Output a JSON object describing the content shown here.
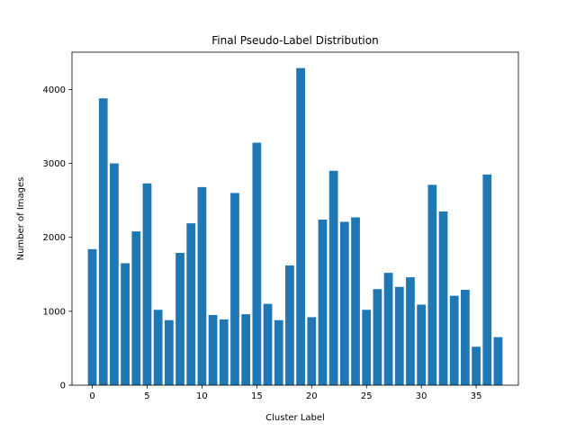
{
  "chart_data": {
    "type": "bar",
    "title": "Final Pseudo-Label Distribution",
    "xlabel": "Cluster Label",
    "ylabel": "Number of Images",
    "x": [
      0,
      1,
      2,
      3,
      4,
      5,
      6,
      7,
      8,
      9,
      10,
      11,
      12,
      13,
      14,
      15,
      16,
      17,
      18,
      19,
      20,
      21,
      22,
      23,
      24,
      25,
      26,
      27,
      28,
      29,
      30,
      31,
      32,
      33,
      34,
      35,
      36,
      37
    ],
    "values": [
      1840,
      3880,
      3000,
      1650,
      2080,
      2730,
      1020,
      880,
      1790,
      2190,
      2680,
      950,
      890,
      2600,
      960,
      3280,
      1100,
      880,
      1620,
      4290,
      920,
      2240,
      2900,
      2210,
      2270,
      1020,
      1300,
      1520,
      1330,
      1460,
      1090,
      2710,
      2350,
      1210,
      1290,
      520,
      2850,
      650
    ],
    "xticks": [
      0,
      5,
      10,
      15,
      20,
      25,
      30,
      35
    ],
    "yticks": [
      0,
      1000,
      2000,
      3000,
      4000
    ],
    "xlim": [
      -1.85,
      38.85
    ],
    "ylim": [
      0,
      4504.5
    ],
    "grid": false,
    "bar_color": "#1f77b4"
  }
}
